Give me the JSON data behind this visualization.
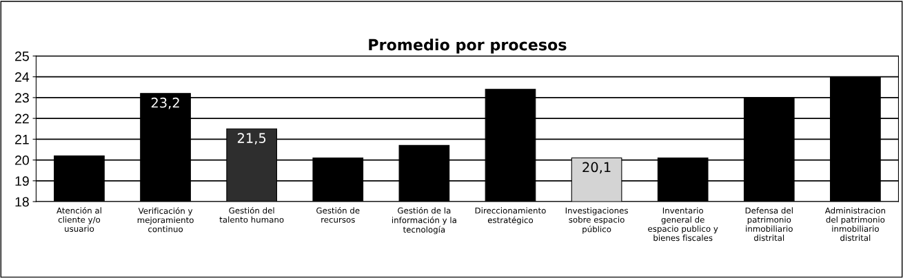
{
  "chart_data": {
    "type": "bar",
    "title": "Promedio por procesos",
    "categories": [
      "Atención al\ncliente y/o\nusuario",
      "Verificación y\nmejoramiento\ncontinuo",
      "Gestión del\ntalento humano",
      "Gestión de\nrecursos",
      "Gestión de la\ninformación y la\ntecnología",
      "Direccionamiento\nestratégico",
      "Investigaciones\nsobre espacio\npúblico",
      "Inventario\ngeneral de\nespacio publico y\nbienes fiscales",
      "Defensa del\npatrimonio\ninmobiliario\ndistrital",
      "Administracion\ndel patrimonio\ninmobiliario\ndistrital"
    ],
    "values": [
      20.2,
      23.2,
      21.5,
      20.1,
      20.7,
      23.4,
      20.1,
      20.1,
      23.0,
      24.0
    ],
    "value_labels": [
      null,
      "23,2",
      "21,5",
      null,
      null,
      null,
      "20,1",
      null,
      null,
      null
    ],
    "colors": [
      "#000000",
      "#000000",
      "#2e2e2e",
      "#000000",
      "#000000",
      "#000000",
      "#d4d4d4",
      "#000000",
      "#000000",
      "#000000"
    ],
    "ylim": [
      18,
      25
    ],
    "yticks": [
      18,
      19,
      20,
      21,
      22,
      23,
      24,
      25
    ],
    "grid": "y"
  }
}
